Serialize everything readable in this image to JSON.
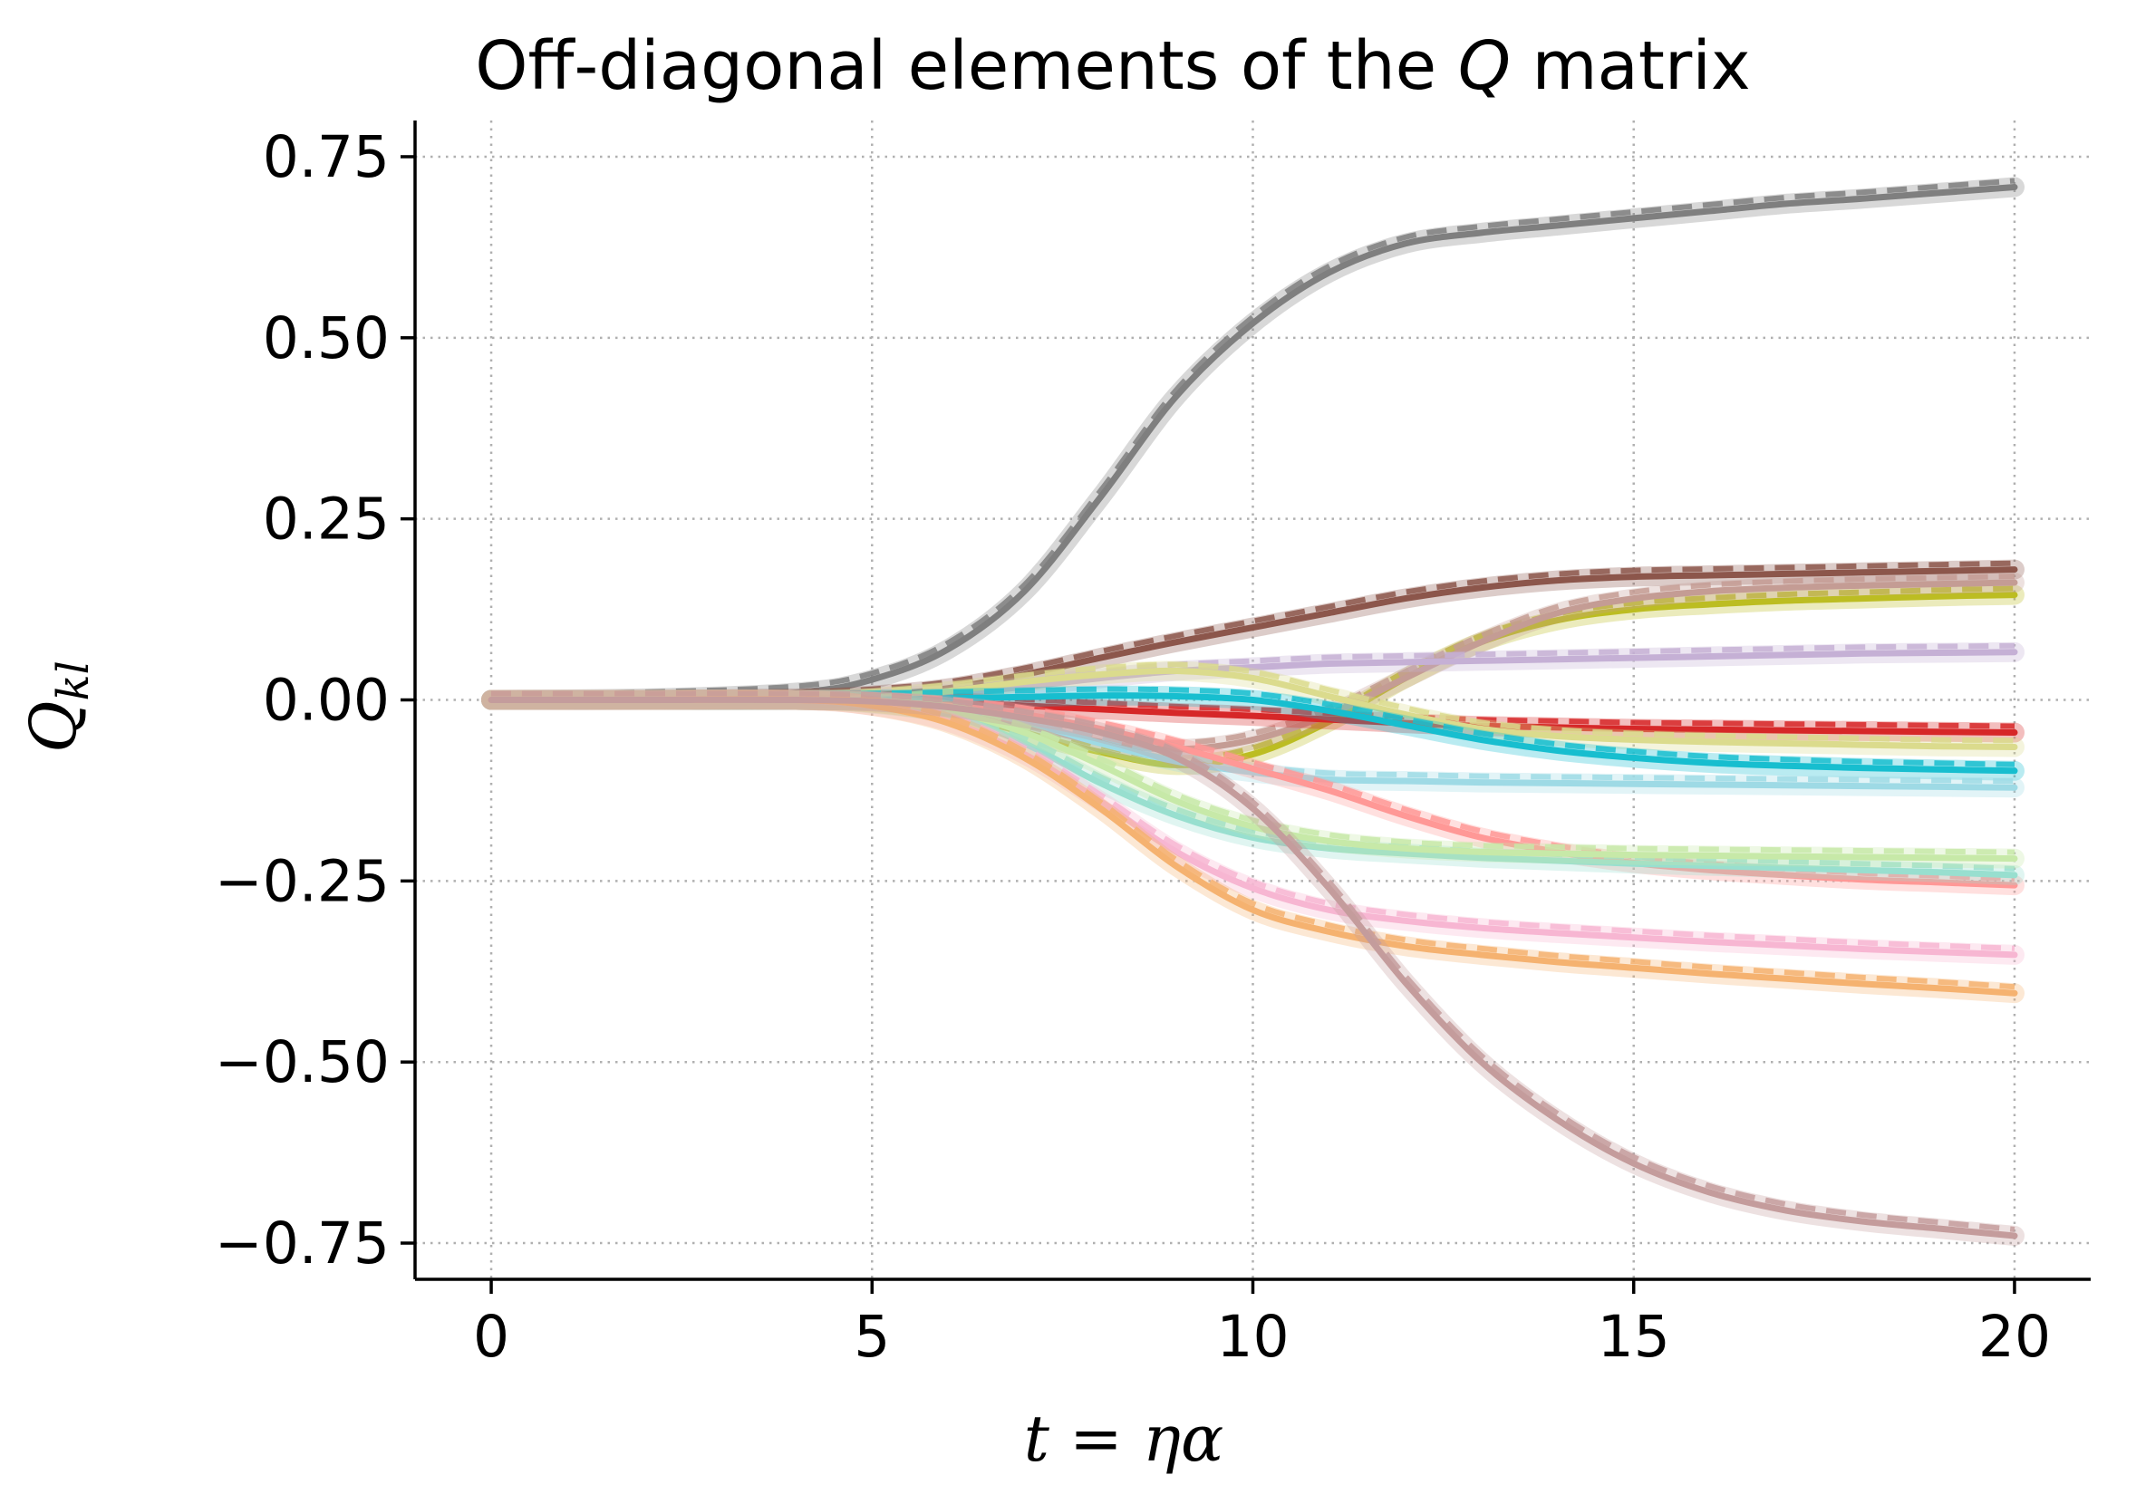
{
  "chart_data": {
    "type": "line",
    "title_prefix": "Off-diagonal elements of the ",
    "title_symbol": "Q",
    "title_suffix": " matrix",
    "xlabel": "t = ηα",
    "ylabel_main": "Q",
    "ylabel_sub": "kl",
    "xlim": [
      -1,
      21
    ],
    "ylim": [
      -0.8,
      0.8
    ],
    "xticks": [
      0,
      5,
      10,
      15,
      20
    ],
    "xtick_labels": [
      "0",
      "5",
      "10",
      "15",
      "20"
    ],
    "yticks": [
      0.75,
      0.5,
      0.25,
      0.0,
      -0.25,
      -0.5,
      -0.75
    ],
    "ytick_labels": [
      "0.75",
      "0.50",
      "0.25",
      "0.00",
      "−0.25",
      "−0.50",
      "−0.75"
    ],
    "grid": true,
    "x": [
      0,
      2,
      4,
      5,
      6,
      7,
      8,
      9,
      10,
      11,
      12,
      13,
      14,
      15,
      16,
      17,
      18,
      19,
      20
    ],
    "series": [
      {
        "name": "gray",
        "color": "#7f7f7f",
        "values": [
          0,
          0.002,
          0.01,
          0.028,
          0.07,
          0.15,
          0.28,
          0.42,
          0.52,
          0.59,
          0.63,
          0.645,
          0.655,
          0.665,
          0.675,
          0.685,
          0.692,
          0.7,
          0.708
        ]
      },
      {
        "name": "brown",
        "color": "#8c564b",
        "values": [
          0,
          0,
          0.002,
          0.006,
          0.016,
          0.035,
          0.058,
          0.08,
          0.1,
          0.12,
          0.14,
          0.155,
          0.165,
          0.17,
          0.172,
          0.174,
          0.176,
          0.178,
          0.18
        ]
      },
      {
        "name": "olive",
        "color": "#bcbd22",
        "values": [
          0,
          0,
          0,
          -0.004,
          -0.018,
          -0.045,
          -0.072,
          -0.09,
          -0.075,
          -0.03,
          0.03,
          0.08,
          0.11,
          0.125,
          0.132,
          0.137,
          0.14,
          0.143,
          0.145
        ]
      },
      {
        "name": "tan",
        "color": "#c49c94",
        "values": [
          0,
          0,
          0,
          -0.002,
          -0.012,
          -0.035,
          -0.058,
          -0.068,
          -0.055,
          -0.02,
          0.03,
          0.08,
          0.12,
          0.14,
          0.15,
          0.155,
          0.158,
          0.16,
          0.162
        ]
      },
      {
        "name": "lavender",
        "color": "#c5b0d5",
        "values": [
          0,
          0,
          0,
          0.002,
          0.008,
          0.018,
          0.03,
          0.04,
          0.045,
          0.05,
          0.052,
          0.054,
          0.056,
          0.058,
          0.06,
          0.062,
          0.064,
          0.065,
          0.066
        ]
      },
      {
        "name": "red",
        "color": "#d62728",
        "values": [
          0,
          0,
          0,
          0,
          -0.003,
          -0.008,
          -0.013,
          -0.018,
          -0.022,
          -0.027,
          -0.032,
          -0.036,
          -0.038,
          -0.04,
          -0.041,
          -0.042,
          -0.043,
          -0.044,
          -0.045
        ]
      },
      {
        "name": "yellow",
        "color": "#dbdb8d",
        "values": [
          0,
          0,
          0,
          0.003,
          0.012,
          0.025,
          0.035,
          0.04,
          0.03,
          0.005,
          -0.02,
          -0.04,
          -0.05,
          -0.055,
          -0.058,
          -0.06,
          -0.062,
          -0.064,
          -0.065
        ]
      },
      {
        "name": "cyan",
        "color": "#17becf",
        "values": [
          0,
          0,
          0,
          0,
          0.002,
          0.004,
          0.006,
          0.005,
          0.0,
          -0.015,
          -0.035,
          -0.055,
          -0.07,
          -0.08,
          -0.087,
          -0.091,
          -0.094,
          -0.096,
          -0.098
        ]
      },
      {
        "name": "lightblue",
        "color": "#9edae5",
        "values": [
          0,
          0,
          0,
          -0.002,
          -0.01,
          -0.03,
          -0.06,
          -0.085,
          -0.1,
          -0.11,
          -0.112,
          -0.114,
          -0.115,
          -0.116,
          -0.117,
          -0.118,
          -0.119,
          -0.12,
          -0.121
        ]
      },
      {
        "name": "salmon",
        "color": "#ff9896",
        "values": [
          0,
          0,
          0,
          -0.002,
          -0.008,
          -0.02,
          -0.04,
          -0.065,
          -0.095,
          -0.125,
          -0.16,
          -0.19,
          -0.21,
          -0.225,
          -0.235,
          -0.242,
          -0.248,
          -0.252,
          -0.256
        ]
      },
      {
        "name": "teal",
        "color": "#98dfcf",
        "values": [
          0,
          0,
          0,
          -0.005,
          -0.02,
          -0.06,
          -0.115,
          -0.16,
          -0.19,
          -0.205,
          -0.212,
          -0.218,
          -0.222,
          -0.226,
          -0.229,
          -0.232,
          -0.235,
          -0.238,
          -0.242
        ]
      },
      {
        "name": "green",
        "color": "#c7e9a8",
        "values": [
          0,
          0,
          0,
          -0.003,
          -0.015,
          -0.045,
          -0.09,
          -0.14,
          -0.175,
          -0.195,
          -0.205,
          -0.21,
          -0.212,
          -0.214,
          -0.215,
          -0.216,
          -0.217,
          -0.218,
          -0.219
        ]
      },
      {
        "name": "pink",
        "color": "#f7b6d2",
        "values": [
          0,
          0,
          0,
          -0.008,
          -0.03,
          -0.075,
          -0.14,
          -0.21,
          -0.26,
          -0.29,
          -0.305,
          -0.315,
          -0.322,
          -0.328,
          -0.334,
          -0.339,
          -0.344,
          -0.348,
          -0.352
        ]
      },
      {
        "name": "orange",
        "color": "#f5b270",
        "values": [
          0,
          0,
          0,
          -0.008,
          -0.032,
          -0.08,
          -0.15,
          -0.23,
          -0.29,
          -0.32,
          -0.34,
          -0.352,
          -0.362,
          -0.37,
          -0.378,
          -0.385,
          -0.392,
          -0.398,
          -0.405
        ]
      },
      {
        "name": "mauve",
        "color": "#c49c9c",
        "values": [
          0,
          0,
          0,
          -0.002,
          -0.01,
          -0.025,
          -0.045,
          -0.08,
          -0.15,
          -0.26,
          -0.39,
          -0.5,
          -0.58,
          -0.64,
          -0.68,
          -0.705,
          -0.72,
          -0.73,
          -0.74
        ]
      }
    ]
  }
}
